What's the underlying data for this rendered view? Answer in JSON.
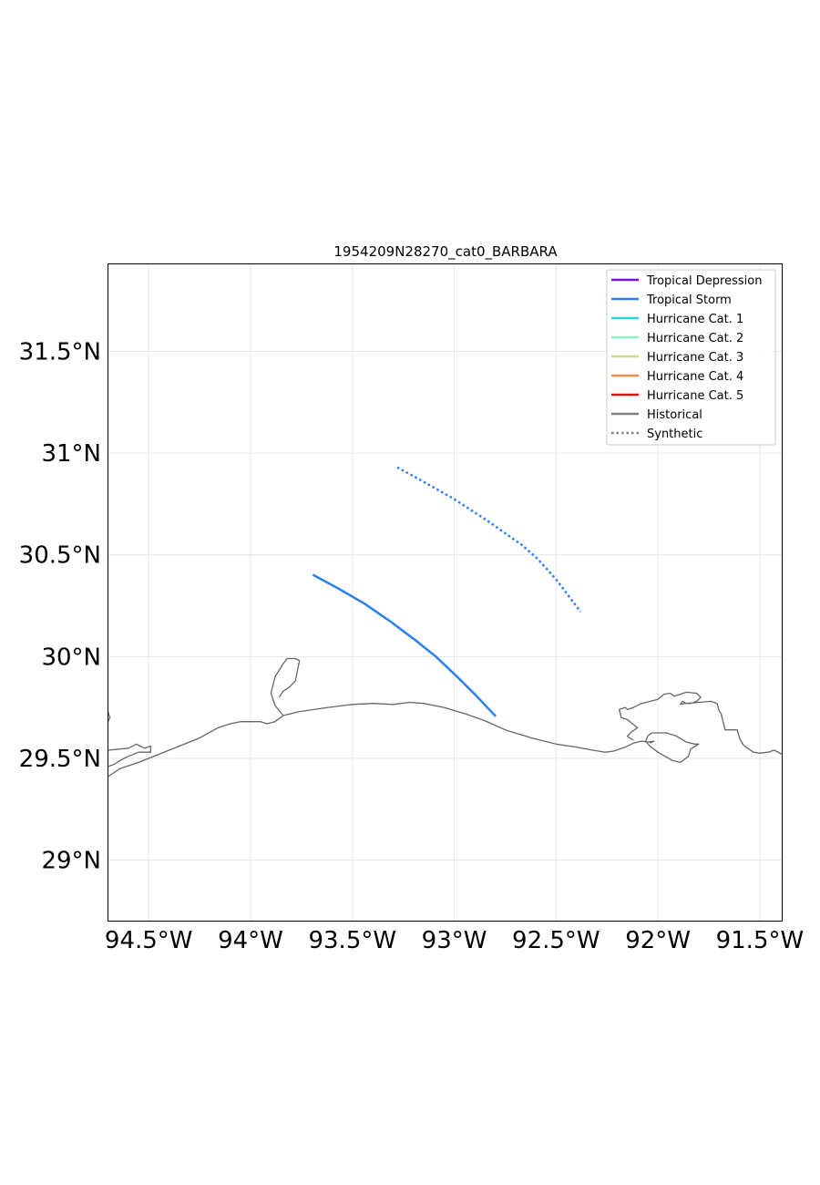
{
  "title": "1954209N28270_cat0_BARBARA",
  "colors": {
    "tropical_storm": "#2a7fef",
    "coastline": "#666666",
    "grid": "#e6e6e6",
    "frame": "#000000"
  },
  "axes": {
    "x_ticks": [
      {
        "lon": -94.5,
        "label": "94.5°W"
      },
      {
        "lon": -94.0,
        "label": "94°W"
      },
      {
        "lon": -93.5,
        "label": "93.5°W"
      },
      {
        "lon": -93.0,
        "label": "93°W"
      },
      {
        "lon": -92.5,
        "label": "92.5°W"
      },
      {
        "lon": -92.0,
        "label": "92°W"
      },
      {
        "lon": -91.5,
        "label": "91.5°W"
      }
    ],
    "y_ticks": [
      {
        "lat": 31.5,
        "label": "31.5°N"
      },
      {
        "lat": 31.0,
        "label": "31°N"
      },
      {
        "lat": 30.5,
        "label": "30.5°N"
      },
      {
        "lat": 30.0,
        "label": "30°N"
      },
      {
        "lat": 29.5,
        "label": "29.5°N"
      },
      {
        "lat": 29.0,
        "label": "29°N"
      }
    ],
    "lon_range": [
      -94.7,
      -91.39
    ],
    "lat_range": [
      28.7,
      31.93
    ]
  },
  "legend": {
    "placement": "top-right",
    "entries": [
      {
        "label": "Tropical Depression",
        "color": "#7b10d8",
        "style": "solid"
      },
      {
        "label": "Tropical Storm",
        "color": "#2a7fef",
        "style": "solid"
      },
      {
        "label": "Hurricane Cat. 1",
        "color": "#2fd4d4",
        "style": "solid"
      },
      {
        "label": "Hurricane Cat. 2",
        "color": "#8ef5c0",
        "style": "solid"
      },
      {
        "label": "Hurricane Cat. 3",
        "color": "#d4d880",
        "style": "solid"
      },
      {
        "label": "Hurricane Cat. 4",
        "color": "#f58a4a",
        "style": "solid"
      },
      {
        "label": "Hurricane Cat. 5",
        "color": "#e8120e",
        "style": "solid"
      },
      {
        "label": "Historical",
        "color": "#808080",
        "style": "solid"
      },
      {
        "label": "Synthetic",
        "color": "#808080",
        "style": "dotted"
      }
    ]
  },
  "tracks": [
    {
      "kind": "historical",
      "category": "Tropical Storm",
      "points": [
        [
          -93.69,
          30.4
        ],
        [
          -93.57,
          30.335
        ],
        [
          -93.44,
          30.26
        ],
        [
          -93.31,
          30.17
        ],
        [
          -93.19,
          30.08
        ],
        [
          -93.09,
          30.0
        ],
        [
          -92.99,
          29.905
        ],
        [
          -92.89,
          29.805
        ],
        [
          -92.8,
          29.71
        ]
      ]
    },
    {
      "kind": "synthetic",
      "category": "Tropical Storm",
      "points": [
        [
          -93.28,
          30.93
        ],
        [
          -93.17,
          30.87
        ],
        [
          -93.01,
          30.78
        ],
        [
          -92.84,
          30.67
        ],
        [
          -92.67,
          30.55
        ],
        [
          -92.59,
          30.48
        ],
        [
          -92.5,
          30.38
        ],
        [
          -92.38,
          30.22
        ]
      ]
    }
  ],
  "coastlines": [
    [
      [
        -94.7,
        29.54
      ],
      [
        -94.6,
        29.55
      ],
      [
        -94.56,
        29.57
      ],
      [
        -94.52,
        29.55
      ],
      [
        -94.49,
        29.56
      ],
      [
        -94.49,
        29.53
      ],
      [
        -94.55,
        29.53
      ],
      [
        -94.6,
        29.51
      ],
      [
        -94.64,
        29.49
      ],
      [
        -94.67,
        29.47
      ],
      [
        -94.7,
        29.46
      ]
    ],
    [
      [
        -94.7,
        29.41
      ],
      [
        -94.64,
        29.45
      ],
      [
        -94.55,
        29.48
      ],
      [
        -94.45,
        29.52
      ],
      [
        -94.35,
        29.56
      ],
      [
        -94.25,
        29.6
      ],
      [
        -94.16,
        29.65
      ],
      [
        -94.1,
        29.67
      ],
      [
        -94.05,
        29.68
      ],
      [
        -93.95,
        29.68
      ],
      [
        -93.92,
        29.67
      ],
      [
        -93.88,
        29.68
      ],
      [
        -93.84,
        29.71
      ],
      [
        -93.76,
        29.73
      ],
      [
        -93.62,
        29.75
      ],
      [
        -93.5,
        29.765
      ],
      [
        -93.4,
        29.77
      ],
      [
        -93.3,
        29.765
      ],
      [
        -93.22,
        29.775
      ],
      [
        -93.15,
        29.77
      ],
      [
        -93.05,
        29.75
      ],
      [
        -92.95,
        29.72
      ],
      [
        -92.85,
        29.685
      ],
      [
        -92.75,
        29.64
      ],
      [
        -92.62,
        29.6
      ],
      [
        -92.5,
        29.57
      ],
      [
        -92.4,
        29.555
      ],
      [
        -92.32,
        29.54
      ],
      [
        -92.26,
        29.53
      ],
      [
        -92.22,
        29.535
      ],
      [
        -92.16,
        29.555
      ],
      [
        -92.12,
        29.575
      ],
      [
        -92.08,
        29.585
      ],
      [
        -92.05,
        29.58
      ],
      [
        -92.02,
        29.585
      ],
      [
        -92.04,
        29.575
      ]
    ],
    [
      [
        -93.84,
        29.71
      ],
      [
        -93.88,
        29.76
      ],
      [
        -93.9,
        29.82
      ],
      [
        -93.88,
        29.9
      ],
      [
        -93.84,
        29.965
      ],
      [
        -93.82,
        29.99
      ],
      [
        -93.78,
        29.99
      ],
      [
        -93.76,
        29.98
      ],
      [
        -93.77,
        29.93
      ],
      [
        -93.78,
        29.88
      ],
      [
        -93.81,
        29.85
      ],
      [
        -93.84,
        29.83
      ],
      [
        -93.86,
        29.8
      ]
    ],
    [
      [
        -92.12,
        29.59
      ],
      [
        -92.14,
        29.6
      ],
      [
        -92.15,
        29.61
      ],
      [
        -92.13,
        29.63
      ],
      [
        -92.1,
        29.65
      ],
      [
        -92.15,
        29.69
      ],
      [
        -92.18,
        29.7
      ],
      [
        -92.19,
        29.74
      ],
      [
        -92.16,
        29.75
      ],
      [
        -92.15,
        29.74
      ],
      [
        -92.12,
        29.75
      ],
      [
        -92.08,
        29.77
      ],
      [
        -92.0,
        29.79
      ],
      [
        -91.97,
        29.815
      ],
      [
        -91.94,
        29.82
      ],
      [
        -91.92,
        29.805
      ],
      [
        -91.89,
        29.815
      ],
      [
        -91.86,
        29.825
      ],
      [
        -91.81,
        29.82
      ],
      [
        -91.79,
        29.8
      ],
      [
        -91.81,
        29.78
      ],
      [
        -91.84,
        29.77
      ],
      [
        -91.87,
        29.77
      ],
      [
        -91.89,
        29.765
      ],
      [
        -91.88,
        29.78
      ],
      [
        -91.86,
        29.77
      ],
      [
        -91.8,
        29.775
      ],
      [
        -91.74,
        29.78
      ],
      [
        -91.71,
        29.77
      ],
      [
        -91.7,
        29.735
      ],
      [
        -91.69,
        29.72
      ],
      [
        -91.67,
        29.64
      ],
      [
        -91.63,
        29.64
      ],
      [
        -91.61,
        29.64
      ],
      [
        -91.6,
        29.6
      ],
      [
        -91.58,
        29.565
      ],
      [
        -91.56,
        29.55
      ],
      [
        -91.53,
        29.53
      ],
      [
        -91.5,
        29.525
      ],
      [
        -91.46,
        29.53
      ],
      [
        -91.43,
        29.54
      ],
      [
        -91.39,
        29.52
      ]
    ],
    [
      [
        -92.05,
        29.61
      ],
      [
        -92.03,
        29.625
      ],
      [
        -91.96,
        29.625
      ],
      [
        -91.91,
        29.61
      ],
      [
        -91.86,
        29.58
      ],
      [
        -91.82,
        29.57
      ],
      [
        -91.8,
        29.57
      ],
      [
        -91.84,
        29.545
      ],
      [
        -91.85,
        29.51
      ],
      [
        -91.89,
        29.48
      ],
      [
        -91.93,
        29.49
      ],
      [
        -92.0,
        29.53
      ],
      [
        -92.04,
        29.56
      ],
      [
        -92.06,
        29.585
      ],
      [
        -92.05,
        29.61
      ]
    ],
    [
      [
        -94.7,
        29.73
      ],
      [
        -94.69,
        29.7
      ],
      [
        -94.7,
        29.68
      ]
    ]
  ]
}
